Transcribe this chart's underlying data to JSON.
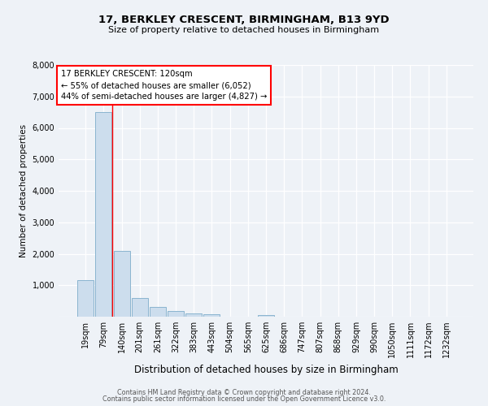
{
  "title1": "17, BERKLEY CRESCENT, BIRMINGHAM, B13 9YD",
  "title2": "Size of property relative to detached houses in Birmingham",
  "xlabel": "Distribution of detached houses by size in Birmingham",
  "ylabel": "Number of detached properties",
  "bin_labels": [
    "19sqm",
    "79sqm",
    "140sqm",
    "201sqm",
    "261sqm",
    "322sqm",
    "383sqm",
    "443sqm",
    "504sqm",
    "565sqm",
    "625sqm",
    "686sqm",
    "747sqm",
    "807sqm",
    "868sqm",
    "929sqm",
    "990sqm",
    "1050sqm",
    "1111sqm",
    "1172sqm",
    "1232sqm"
  ],
  "bar_values": [
    1150,
    6500,
    2100,
    600,
    300,
    170,
    100,
    70,
    0,
    0,
    60,
    0,
    0,
    0,
    0,
    0,
    0,
    0,
    0,
    0,
    0
  ],
  "bar_color": "#ccdded",
  "bar_edge_color": "#8ab4cf",
  "annotation_text": "17 BERKLEY CRESCENT: 120sqm\n← 55% of detached houses are smaller (6,052)\n44% of semi-detached houses are larger (4,827) →",
  "ylim": [
    0,
    8000
  ],
  "yticks": [
    0,
    1000,
    2000,
    3000,
    4000,
    5000,
    6000,
    7000,
    8000
  ],
  "footer1": "Contains HM Land Registry data © Crown copyright and database right 2024.",
  "footer2": "Contains public sector information licensed under the Open Government Licence v3.0.",
  "bg_color": "#eef2f7",
  "grid_color": "#dde6f0",
  "red_line_x": 1.5
}
